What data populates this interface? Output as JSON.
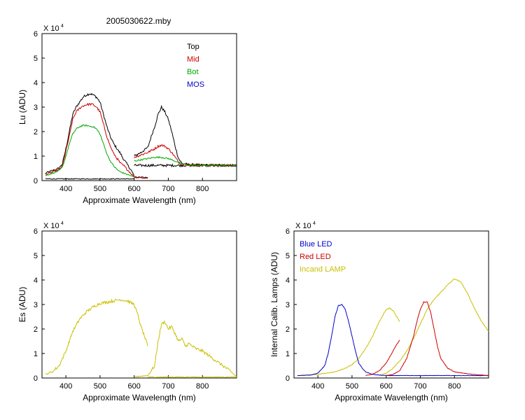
{
  "figure_title": "2005030622.mby",
  "chart_data": [
    {
      "type": "line",
      "id": "lu",
      "xlabel": "Approximate Wavelength (nm)",
      "ylabel": "Lu (ADU)",
      "y_multiplier": "X 10",
      "y_exponent": "4",
      "xlim": [
        330,
        900
      ],
      "ylim": [
        0,
        6
      ],
      "xticks": [
        400,
        500,
        600,
        700,
        800
      ],
      "yticks": [
        0,
        1,
        2,
        3,
        4,
        5,
        6
      ],
      "legend_position": "top-right",
      "legend": [
        {
          "name": "Top",
          "color": "#000000"
        },
        {
          "name": "Mid",
          "color": "#cc0000"
        },
        {
          "name": "Bot",
          "color": "#00aa00"
        },
        {
          "name": "MOS",
          "color": "#0000cc"
        }
      ],
      "series": [
        {
          "name": "Top",
          "color": "#000000",
          "noise": 0.1,
          "segments": [
            {
              "x": [
                340,
                360,
                380,
                390,
                400,
                410,
                420,
                430,
                440,
                450,
                460,
                470,
                480,
                490,
                500,
                510,
                520,
                530,
                540,
                550,
                560,
                570,
                580,
                590,
                600
              ],
              "y": [
                0.3,
                0.4,
                0.5,
                0.7,
                1.3,
                2.0,
                2.7,
                3.0,
                3.2,
                3.4,
                3.5,
                3.55,
                3.5,
                3.4,
                3.2,
                2.7,
                2.2,
                1.8,
                1.5,
                1.3,
                1.1,
                0.85,
                0.65,
                0.45,
                0.2
              ]
            },
            {
              "x": [
                600,
                620,
                640,
                650,
                660,
                670,
                680,
                690,
                700,
                710,
                720,
                730,
                740,
                760,
                800,
                850,
                900
              ],
              "y": [
                1.0,
                1.15,
                1.35,
                1.8,
                2.2,
                2.7,
                3.0,
                2.8,
                2.5,
                2.0,
                1.4,
                0.9,
                0.7,
                0.65,
                0.63,
                0.62,
                0.62
              ]
            },
            {
              "x": [
                600,
                640
              ],
              "y": [
                0.15,
                0.12
              ]
            },
            {
              "x": [
                340,
                600
              ],
              "y": [
                0.07,
                0.07
              ]
            },
            {
              "x": [
                600,
                900
              ],
              "y": [
                0.62,
                0.62
              ]
            }
          ]
        },
        {
          "name": "Mid",
          "color": "#cc0000",
          "noise": 0.09,
          "segments": [
            {
              "x": [
                340,
                360,
                380,
                390,
                400,
                410,
                420,
                430,
                440,
                450,
                460,
                470,
                480,
                490,
                500,
                510,
                520,
                530,
                540,
                550,
                560,
                570,
                580,
                590,
                600
              ],
              "y": [
                0.25,
                0.35,
                0.45,
                0.6,
                1.2,
                1.8,
                2.5,
                2.8,
                2.95,
                3.05,
                3.1,
                3.12,
                3.1,
                3.0,
                2.8,
                2.3,
                1.8,
                1.4,
                1.1,
                0.9,
                0.7,
                0.6,
                0.45,
                0.3,
                0.15
              ]
            },
            {
              "x": [
                600,
                620,
                640,
                660,
                670,
                680,
                690,
                700,
                710,
                720,
                730,
                740,
                760,
                800,
                900
              ],
              "y": [
                0.95,
                1.05,
                1.15,
                1.3,
                1.4,
                1.45,
                1.4,
                1.3,
                1.15,
                0.95,
                0.75,
                0.65,
                0.63,
                0.62,
                0.62
              ]
            },
            {
              "x": [
                600,
                640
              ],
              "y": [
                0.13,
                0.1
              ]
            }
          ]
        },
        {
          "name": "Bot",
          "color": "#00aa00",
          "noise": 0.06,
          "segments": [
            {
              "x": [
                340,
                360,
                380,
                390,
                400,
                410,
                420,
                430,
                440,
                450,
                460,
                470,
                480,
                490,
                500,
                510,
                520,
                530,
                540,
                550,
                560,
                570,
                580,
                590,
                600
              ],
              "y": [
                0.2,
                0.3,
                0.4,
                0.55,
                1.0,
                1.5,
                1.9,
                2.1,
                2.2,
                2.25,
                2.25,
                2.22,
                2.2,
                2.1,
                1.9,
                1.5,
                1.1,
                0.8,
                0.6,
                0.45,
                0.35,
                0.3,
                0.25,
                0.2,
                0.15
              ]
            },
            {
              "x": [
                600,
                620,
                640,
                660,
                680,
                700,
                720,
                740,
                760,
                800,
                900
              ],
              "y": [
                0.8,
                0.85,
                0.9,
                0.95,
                0.95,
                0.9,
                0.8,
                0.68,
                0.63,
                0.62,
                0.62
              ]
            }
          ]
        }
      ]
    },
    {
      "type": "line",
      "id": "es",
      "xlabel": "Approximate Wavelength (nm)",
      "ylabel": "Es (ADU)",
      "y_multiplier": "X 10",
      "y_exponent": "4",
      "xlim": [
        330,
        900
      ],
      "ylim": [
        0,
        6
      ],
      "xticks": [
        400,
        500,
        600,
        700,
        800
      ],
      "yticks": [
        0,
        1,
        2,
        3,
        4,
        5,
        6
      ],
      "legend": [],
      "series": [
        {
          "color": "#c8c000",
          "noise": 0.12,
          "segments": [
            {
              "x": [
                340,
                360,
                380,
                400,
                420,
                440,
                460,
                480,
                500,
                520,
                540,
                560,
                580,
                600,
                610,
                620,
                630,
                640
              ],
              "y": [
                0.15,
                0.25,
                0.5,
                1.1,
                1.9,
                2.4,
                2.7,
                2.9,
                3.05,
                3.1,
                3.15,
                3.2,
                3.15,
                3.0,
                2.6,
                2.1,
                1.7,
                1.3
              ]
            },
            {
              "x": [
                600,
                640,
                660,
                670,
                680,
                690,
                700,
                710,
                720,
                730,
                740,
                750,
                760,
                780,
                800,
                820,
                840,
                860,
                880,
                900
              ],
              "y": [
                0.05,
                0.1,
                0.5,
                1.5,
                2.2,
                2.3,
                2.0,
                2.1,
                1.8,
                1.5,
                1.6,
                1.3,
                1.4,
                1.2,
                1.1,
                0.9,
                0.7,
                0.5,
                0.3,
                0.05
              ]
            },
            {
              "x": [
                640,
                900
              ],
              "y": [
                0.04,
                0.04
              ]
            }
          ]
        }
      ]
    },
    {
      "type": "line",
      "id": "lamps",
      "xlabel": "Approximate Wavelength (nm)",
      "ylabel": "Internal Calib. Lamps (ADU)",
      "y_multiplier": "X 10",
      "y_exponent": "4",
      "xlim": [
        330,
        900
      ],
      "ylim": [
        0,
        6
      ],
      "xticks": [
        400,
        500,
        600,
        700,
        800
      ],
      "yticks": [
        0,
        1,
        2,
        3,
        4,
        5,
        6
      ],
      "legend_position": "top-left",
      "legend": [
        {
          "name": "Blue LED",
          "color": "#0000cc"
        },
        {
          "name": "Red LED",
          "color": "#cc0000"
        },
        {
          "name": "Incand LAMP",
          "color": "#c8c000"
        }
      ],
      "series": [
        {
          "name": "Incand LAMP",
          "color": "#c8c000",
          "noise": 0.04,
          "segments": [
            {
              "x": [
                340,
                400,
                450,
                480,
                500,
                520,
                540,
                560,
                580,
                600,
                610,
                620,
                640
              ],
              "y": [
                0.1,
                0.15,
                0.25,
                0.4,
                0.55,
                0.8,
                1.2,
                1.7,
                2.3,
                2.8,
                2.85,
                2.75,
                2.3
              ]
            },
            {
              "x": [
                580,
                600,
                620,
                640,
                660,
                680,
                700,
                720,
                740,
                760,
                780,
                800,
                820,
                840,
                860,
                880,
                900
              ],
              "y": [
                0.1,
                0.2,
                0.4,
                0.7,
                1.1,
                1.6,
                2.2,
                2.8,
                3.2,
                3.5,
                3.8,
                4.05,
                3.9,
                3.4,
                2.8,
                2.3,
                1.9
              ]
            }
          ]
        },
        {
          "name": "Blue LED",
          "color": "#0000cc",
          "noise": 0.03,
          "segments": [
            {
              "x": [
                340,
                380,
                400,
                420,
                430,
                440,
                450,
                460,
                470,
                480,
                490,
                500,
                510,
                520,
                530,
                540,
                560,
                580,
                600,
                640,
                700,
                800,
                900
              ],
              "y": [
                0.1,
                0.12,
                0.2,
                0.5,
                1.0,
                1.7,
                2.5,
                2.95,
                3.0,
                2.8,
                2.3,
                1.7,
                1.1,
                0.6,
                0.4,
                0.25,
                0.15,
                0.12,
                0.1,
                0.1,
                0.1,
                0.1,
                0.1
              ]
            }
          ]
        },
        {
          "name": "Red LED",
          "color": "#cc0000",
          "noise": 0.03,
          "segments": [
            {
              "x": [
                540,
                560,
                580,
                600,
                610,
                620,
                630,
                640
              ],
              "y": [
                0.1,
                0.15,
                0.3,
                0.6,
                0.85,
                1.1,
                1.35,
                1.55
              ]
            },
            {
              "x": [
                600,
                620,
                640,
                660,
                680,
                690,
                700,
                710,
                720,
                730,
                740,
                750,
                760,
                780,
                800,
                850,
                900
              ],
              "y": [
                0.1,
                0.15,
                0.3,
                0.8,
                1.7,
                2.3,
                2.8,
                3.1,
                3.1,
                2.7,
                2.0,
                1.3,
                0.8,
                0.4,
                0.25,
                0.15,
                0.1
              ]
            }
          ]
        }
      ]
    }
  ]
}
